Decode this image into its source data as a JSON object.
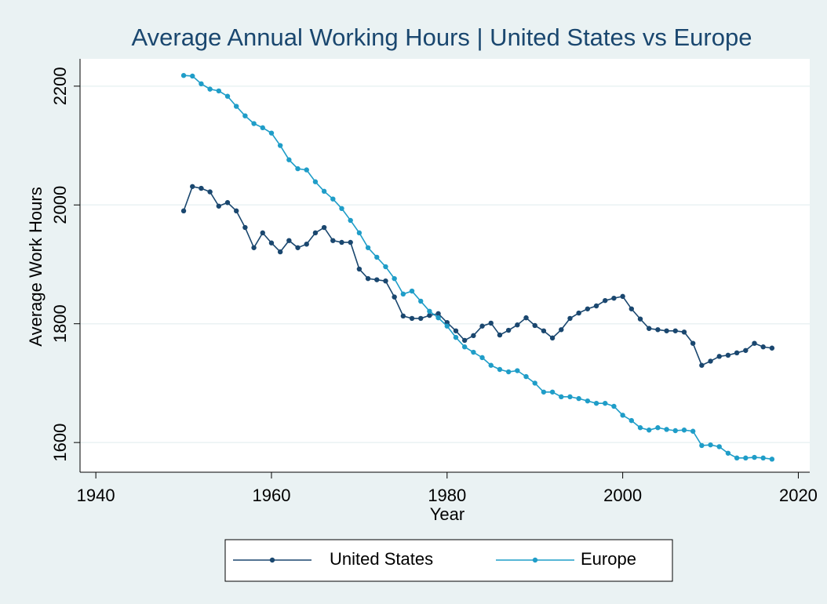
{
  "chart_data": {
    "type": "line",
    "title": "Average Annual Working Hours | United States vs Europe",
    "x_label": "Year",
    "y_label": "Average Work Hours",
    "x": [
      1950,
      1951,
      1952,
      1953,
      1954,
      1955,
      1956,
      1957,
      1958,
      1959,
      1960,
      1961,
      1962,
      1963,
      1964,
      1965,
      1966,
      1967,
      1968,
      1969,
      1970,
      1971,
      1972,
      1973,
      1974,
      1975,
      1976,
      1977,
      1978,
      1979,
      1980,
      1981,
      1982,
      1983,
      1984,
      1985,
      1986,
      1987,
      1988,
      1989,
      1990,
      1991,
      1992,
      1993,
      1994,
      1995,
      1996,
      1997,
      1998,
      1999,
      2000,
      2001,
      2002,
      2003,
      2004,
      2005,
      2006,
      2007,
      2008,
      2009,
      2010,
      2011,
      2012,
      2013,
      2014,
      2015,
      2016,
      2017
    ],
    "series": [
      {
        "name": "United States",
        "color": "#1a476f",
        "values": [
          1990,
          2031,
          2028,
          2022,
          1998,
          2004,
          1990,
          1962,
          1928,
          1953,
          1936,
          1921,
          1940,
          1928,
          1934,
          1953,
          1962,
          1940,
          1937,
          1937,
          1892,
          1876,
          1874,
          1872,
          1845,
          1813,
          1809,
          1809,
          1814,
          1817,
          1802,
          1788,
          1772,
          1780,
          1796,
          1801,
          1781,
          1789,
          1798,
          1810,
          1797,
          1788,
          1776,
          1790,
          1809,
          1818,
          1825,
          1830,
          1839,
          1843,
          1846,
          1825,
          1808,
          1792,
          1790,
          1788,
          1788,
          1786,
          1767,
          1730,
          1737,
          1745,
          1747,
          1751,
          1755,
          1767,
          1761,
          1759
        ]
      },
      {
        "name": "Europe",
        "color": "#1f9dc8",
        "values": [
          2218,
          2217,
          2204,
          2195,
          2192,
          2183,
          2166,
          2150,
          2137,
          2130,
          2121,
          2100,
          2076,
          2061,
          2059,
          2039,
          2023,
          2010,
          1994,
          1974,
          1953,
          1928,
          1912,
          1896,
          1876,
          1850,
          1855,
          1838,
          1821,
          1810,
          1796,
          1777,
          1761,
          1752,
          1743,
          1730,
          1723,
          1719,
          1721,
          1711,
          1700,
          1685,
          1685,
          1677,
          1677,
          1674,
          1670,
          1666,
          1666,
          1661,
          1646,
          1637,
          1625,
          1621,
          1625,
          1622,
          1620,
          1621,
          1619,
          1595,
          1596,
          1593,
          1582,
          1574,
          1574,
          1575,
          1574,
          1572
        ]
      }
    ],
    "xlim": [
      1938.2,
      2021.3
    ],
    "ylim": [
      1550,
      2246
    ],
    "xticks": [
      1940,
      1960,
      1980,
      2000,
      2020
    ],
    "yticks": [
      1600,
      1800,
      2000,
      2200
    ],
    "grid": true,
    "legend": "bottom"
  }
}
